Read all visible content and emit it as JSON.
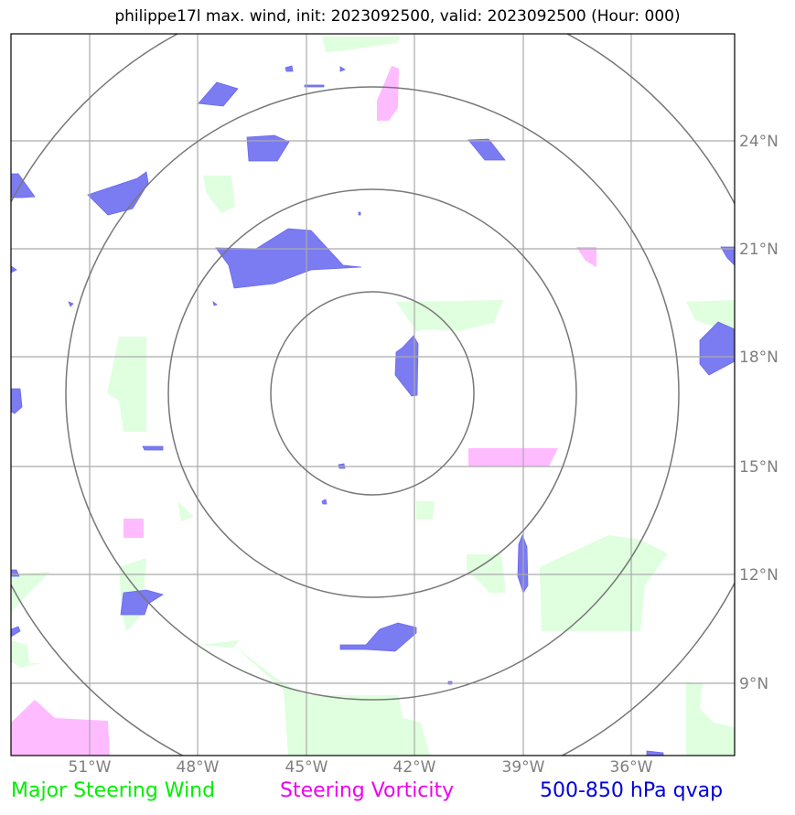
{
  "title": "philippe17l max. wind, init: 2023092500, valid: 2023092500 (Hour: 000)",
  "lat_ticks": [
    "24°N",
    "21°N",
    "18°N",
    "15°N",
    "12°N",
    "9°N"
  ],
  "lon_ticks": [
    "51°W",
    "48°W",
    "45°W",
    "42°W",
    "39°W",
    "36°W"
  ],
  "legend": {
    "wind": "Major Steering Wind",
    "vorticity": "Steering Vorticity",
    "qvap": "500-850 hPa qvap"
  },
  "colors": {
    "wind": "#00ee00",
    "vorticity": "#ee00ee",
    "qvap": "#0000dd",
    "wind_fill": "#dfffdf",
    "vorticity_fill": "#ffbbff",
    "qvap_fill": "#7b7bf2",
    "grid": "#aaaaaa",
    "range_rings": "#777777"
  },
  "range_rings": {
    "count": 4
  }
}
